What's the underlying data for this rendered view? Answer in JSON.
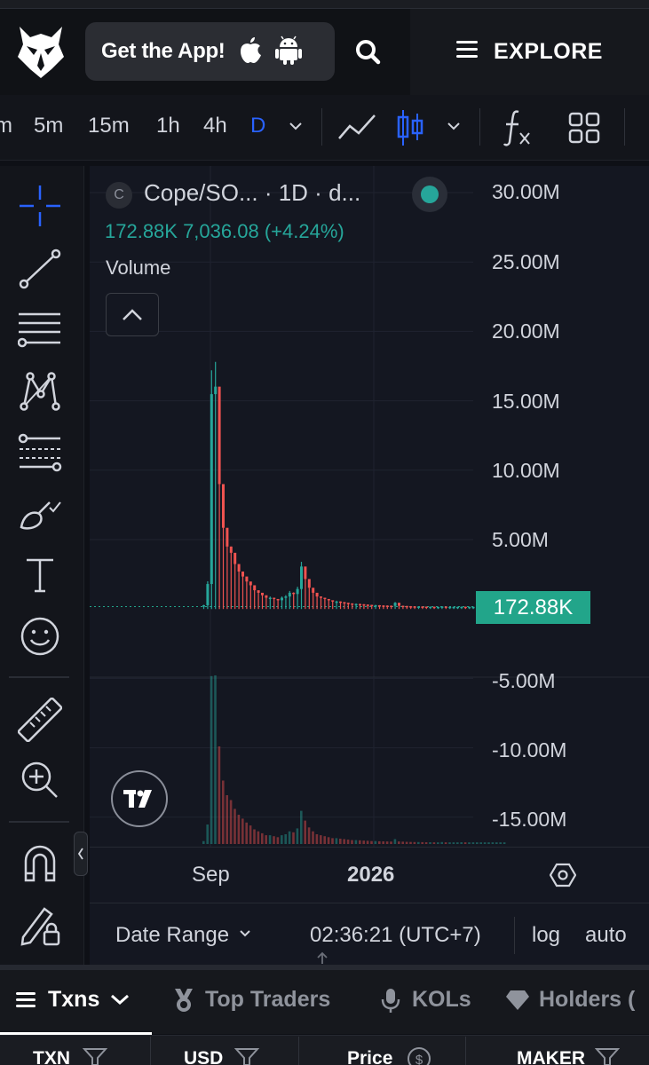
{
  "header": {
    "get_app_label": "Get the App!",
    "explore_label": "EXPLORE"
  },
  "toolbar": {
    "timeframes": [
      "m",
      "5m",
      "15m",
      "1h",
      "4h",
      "D"
    ],
    "active_timeframe": "D"
  },
  "legend": {
    "symbol_badge": "C",
    "title": "Cope/SO... · 1D · d...",
    "values": "172.88K  7,036.08 (+4.24%)",
    "indicator": "Volume"
  },
  "price_axis": {
    "ticks": [
      "30.00M",
      "25.00M",
      "20.00M",
      "15.00M",
      "10.00M",
      "5.00M",
      "-5.00M",
      "-10.00M",
      "-15.00M"
    ],
    "last_value_label": "172.88K"
  },
  "time_axis": {
    "ticks": [
      "Sep",
      "2026"
    ]
  },
  "bottom_bar": {
    "date_range_label": "Date Range",
    "time_readout": "02:36:21 (UTC+7)",
    "log_label": "log",
    "auto_label": "auto"
  },
  "tabs": [
    {
      "label": "Txns",
      "active": true
    },
    {
      "label": "Top Traders",
      "active": false
    },
    {
      "label": "KOLs",
      "active": false
    },
    {
      "label": "Holders (",
      "active": false
    }
  ],
  "table_columns": [
    "TXN",
    "USD",
    "Price",
    "MAKER"
  ],
  "colors": {
    "up": "#26a69a",
    "down": "#ef5350",
    "accent": "#2962ff",
    "last_value_badge": "#22a58a"
  },
  "chart_data": {
    "type": "bar",
    "title": "",
    "series": [
      {
        "name": "Volume",
        "values": [
          0.3,
          2.0,
          17.2,
          17.8,
          10.0,
          6.5,
          5.0,
          4.5,
          3.6,
          3.0,
          2.6,
          2.2,
          1.9,
          1.5,
          1.3,
          1.1,
          0.9,
          0.9,
          0.8,
          0.7,
          0.9,
          1.0,
          1.3,
          1.2,
          1.6,
          3.4,
          2.4,
          1.7,
          1.3,
          1.0,
          0.9,
          0.8,
          0.7,
          0.6,
          0.6,
          0.55,
          0.5,
          0.45,
          0.4,
          0.4,
          0.38,
          0.35,
          0.33,
          0.3,
          0.3,
          0.28,
          0.27,
          0.26,
          0.25,
          0.5,
          0.26,
          0.24,
          0.22,
          0.21,
          0.2,
          0.2,
          0.19,
          0.18,
          0.18,
          0.17,
          0.17,
          0.2,
          0.17,
          0.17,
          0.17,
          0.17,
          0.18,
          0.17,
          0.17,
          0.17,
          0.17,
          0.17,
          0.17,
          0.17,
          0.17,
          0.17,
          0.17,
          0.17
        ]
      }
    ],
    "ylabel": "",
    "ylim": [
      -17,
      31
    ],
    "yticks": [
      30,
      25,
      20,
      15,
      10,
      5,
      -5,
      -10,
      -15
    ],
    "last_value": 0.17288,
    "grid": true
  }
}
